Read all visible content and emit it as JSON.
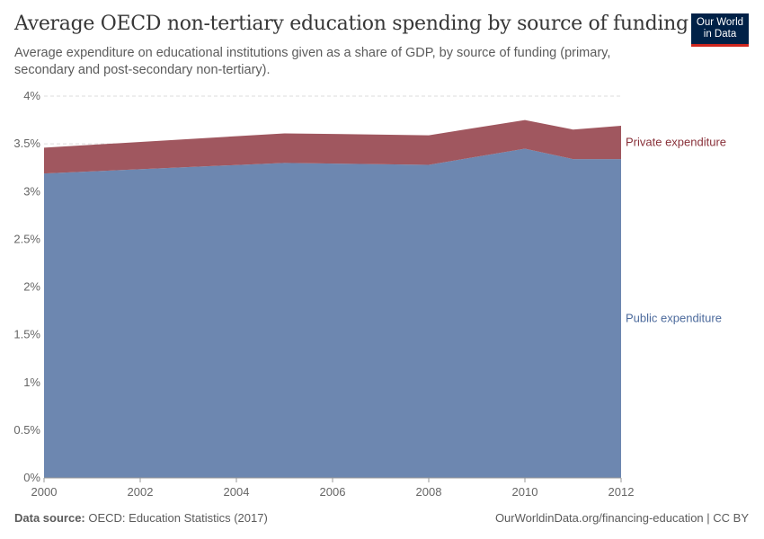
{
  "title": "Average OECD non-tertiary education spending by source of funding",
  "subtitle": "Average expenditure on educational institutions given as a share of GDP, by source of funding (primary, secondary and post-secondary non-tertiary).",
  "logo": "Our World in Data",
  "footer": {
    "source_label": "Data source:",
    "source": "OECD: Education Statistics (2017)",
    "url": "OurWorldinData.org/financing-education | CC BY"
  },
  "chart_data": {
    "type": "area",
    "stacked": true,
    "x": [
      2000,
      2005,
      2008,
      2010,
      2011,
      2012
    ],
    "series": [
      {
        "name": "Public expenditure",
        "color": "#6d87b0",
        "values": [
          3.19,
          3.3,
          3.28,
          3.45,
          3.34,
          3.34
        ]
      },
      {
        "name": "Private expenditure",
        "color": "#a0575f",
        "values": [
          0.27,
          0.31,
          0.31,
          0.3,
          0.31,
          0.35
        ]
      }
    ],
    "xlim": [
      2000,
      2012
    ],
    "ylim": [
      0,
      4
    ],
    "xticks": [
      "2000",
      "2002",
      "2004",
      "2006",
      "2008",
      "2010",
      "2012"
    ],
    "yticks": [
      "0%",
      "0.5%",
      "1%",
      "1.5%",
      "2%",
      "2.5%",
      "3%",
      "3.5%",
      "4%"
    ],
    "grid": "horizontal dashed",
    "legend": "right, inline labels"
  }
}
